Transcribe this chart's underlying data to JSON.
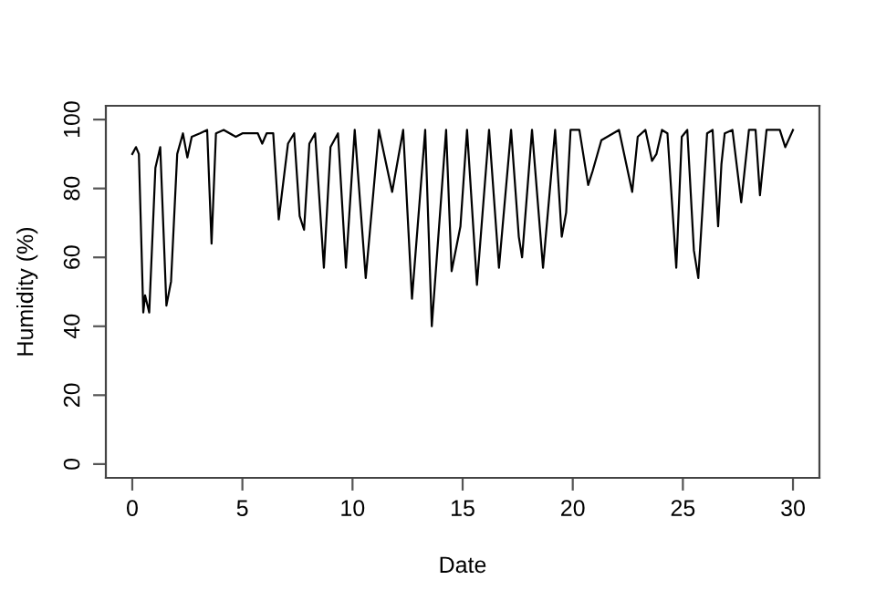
{
  "chart_data": {
    "type": "line",
    "xlabel": "Date",
    "ylabel": "Humidity (%)",
    "xlim": [
      -1.2,
      31.2
    ],
    "xticks": [
      0,
      5,
      10,
      15,
      20,
      25,
      30
    ],
    "ylim": [
      -4,
      104
    ],
    "yticks": [
      0,
      20,
      40,
      60,
      80,
      100
    ],
    "grid": false,
    "legend": false,
    "series": [
      {
        "color": "#000000",
        "x": [
          0.0,
          0.17,
          0.3,
          0.5,
          0.58,
          0.77,
          1.05,
          1.27,
          1.55,
          1.76,
          2.04,
          2.3,
          2.5,
          2.7,
          3.07,
          3.4,
          3.6,
          3.8,
          4.15,
          4.7,
          5.0,
          5.7,
          5.9,
          6.1,
          6.4,
          6.65,
          7.07,
          7.35,
          7.6,
          7.8,
          8.04,
          8.3,
          8.7,
          9.0,
          9.34,
          9.7,
          10.1,
          10.6,
          11.2,
          11.8,
          12.3,
          12.7,
          13.3,
          13.6,
          14.25,
          14.5,
          14.9,
          15.2,
          15.65,
          16.2,
          16.65,
          17.2,
          17.55,
          17.7,
          18.15,
          18.65,
          19.2,
          19.5,
          19.7,
          19.9,
          20.3,
          20.7,
          20.9,
          21.3,
          22.1,
          22.7,
          22.95,
          23.3,
          23.6,
          23.8,
          24.05,
          24.3,
          24.7,
          24.95,
          25.2,
          25.5,
          25.7,
          26.1,
          26.35,
          26.6,
          26.75,
          26.9,
          27.25,
          27.65,
          28.0,
          28.3,
          28.5,
          28.8,
          29.4,
          29.65,
          30.0
        ],
        "values": [
          90,
          92,
          90,
          44,
          49,
          44,
          86,
          92,
          46,
          53,
          90,
          96,
          89,
          95,
          96,
          97,
          64,
          96,
          97,
          95,
          96,
          96,
          93,
          96,
          96,
          71,
          93,
          96,
          72,
          68,
          93,
          96,
          57,
          92,
          96,
          57,
          97,
          54,
          97,
          79,
          97,
          48,
          97,
          40,
          97,
          56,
          69,
          97,
          52,
          97,
          57,
          97,
          66,
          60,
          97,
          57,
          97,
          66,
          73,
          97,
          97,
          81,
          85,
          94,
          97,
          79,
          95,
          97,
          88,
          90,
          97,
          96,
          57,
          95,
          97,
          62,
          54,
          96,
          97,
          69,
          87,
          96,
          97,
          76,
          97,
          97,
          78,
          97,
          97,
          92,
          97
        ]
      }
    ]
  }
}
